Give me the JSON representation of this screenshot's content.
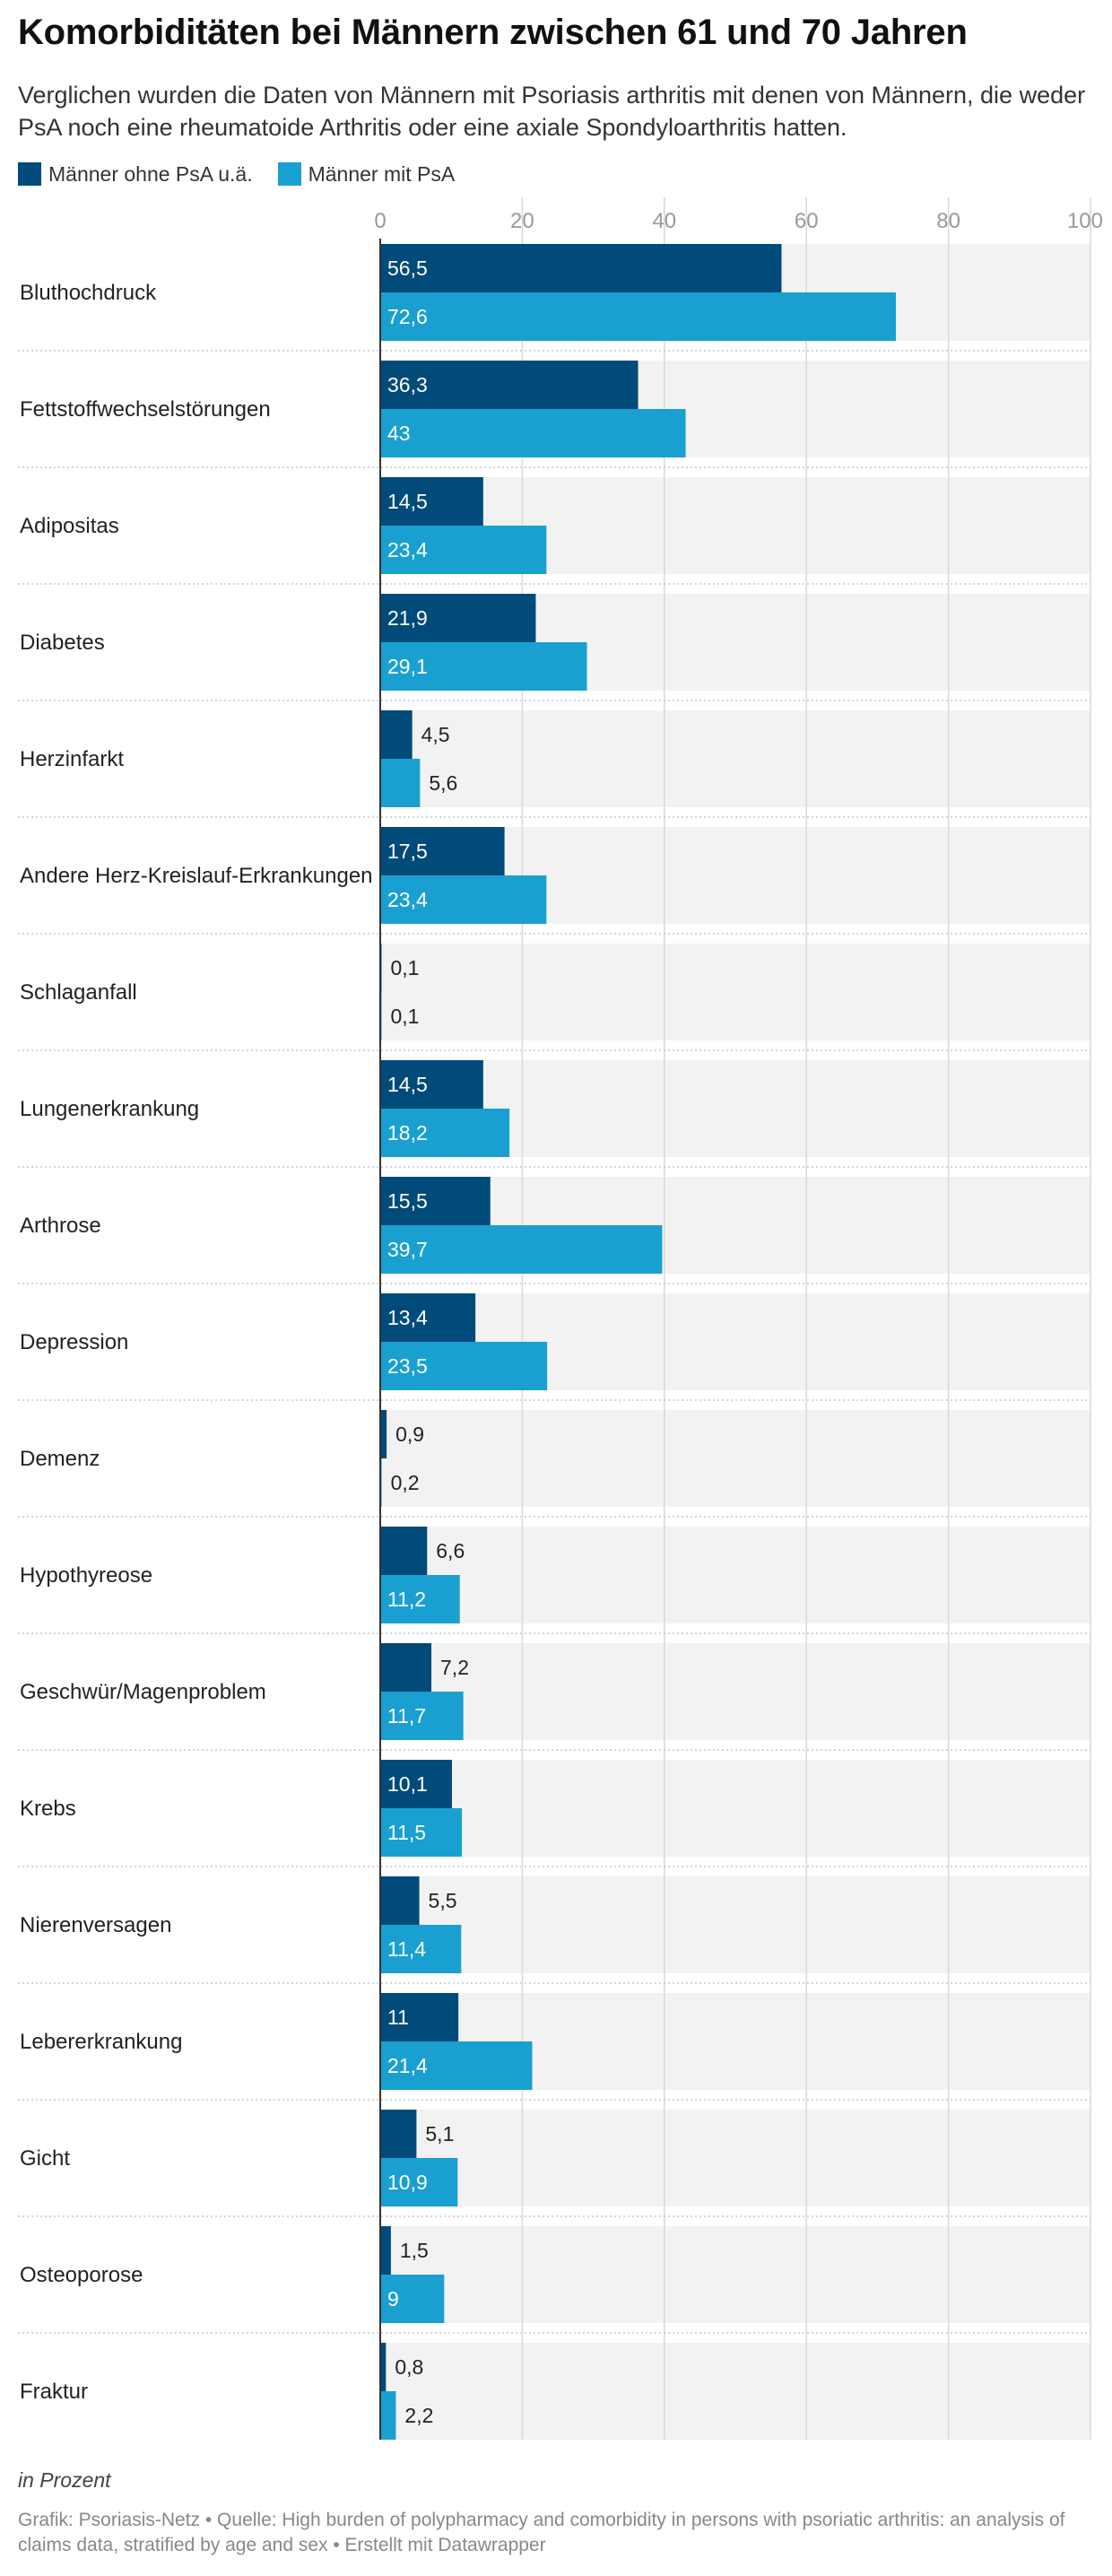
{
  "title": "Komorbiditäten bei Männern zwischen 61 und 70 Jahren",
  "subtitle": "Verglichen wurden die Daten von Männern mit Psoriasis arthritis mit denen von Männern, die weder PsA noch eine rheumatoide Arthritis oder eine axiale Spondyloarthritis hatten.",
  "note": "in Prozent",
  "footer": "Grafik: Psoriasis-Netz • Quelle: High burden of polypharmacy and comorbidity in persons with psoriatic arthritis: an analysis of claims data, stratified by age and sex • Erstellt mit Datawrapper",
  "colors": {
    "series_dark": "#004b79",
    "series_light": "#19a0d0",
    "row_background": "#f2f2f2",
    "gridline": "#d9d9d9"
  },
  "chart_data": {
    "type": "bar",
    "orientation": "horizontal",
    "grouped": true,
    "xlim": [
      0,
      100
    ],
    "ticks": [
      0,
      20,
      40,
      60,
      80,
      100
    ],
    "grid": true,
    "legend_position": "top-left",
    "value_labels": true,
    "categories": [
      "Bluthochdruck",
      "Fettstoffwechselstörungen",
      "Adipositas",
      "Diabetes",
      "Herzinfarkt",
      "Andere Herz-Kreislauf-Erkrankungen",
      "Schlaganfall",
      "Lungenerkrankung",
      "Arthrose",
      "Depression",
      "Demenz",
      "Hypothyreose",
      "Geschwür/Magenproblem",
      "Krebs",
      "Nierenversagen",
      "Lebererkrankung",
      "Gicht",
      "Osteoporose",
      "Fraktur"
    ],
    "series": [
      {
        "name": "Männer ohne PsA u.ä.",
        "color": "#004b79",
        "values": [
          56.5,
          36.3,
          14.5,
          21.9,
          4.5,
          17.5,
          0.1,
          14.5,
          15.5,
          13.4,
          0.9,
          6.6,
          7.2,
          10.1,
          5.5,
          11,
          5.1,
          1.5,
          0.8
        ]
      },
      {
        "name": "Männer mit PsA",
        "color": "#19a0d0",
        "values": [
          72.6,
          43,
          23.4,
          29.1,
          5.6,
          23.4,
          0.1,
          18.2,
          39.7,
          23.5,
          0.2,
          11.2,
          11.7,
          11.5,
          11.4,
          21.4,
          10.9,
          9,
          2.2
        ]
      }
    ]
  }
}
